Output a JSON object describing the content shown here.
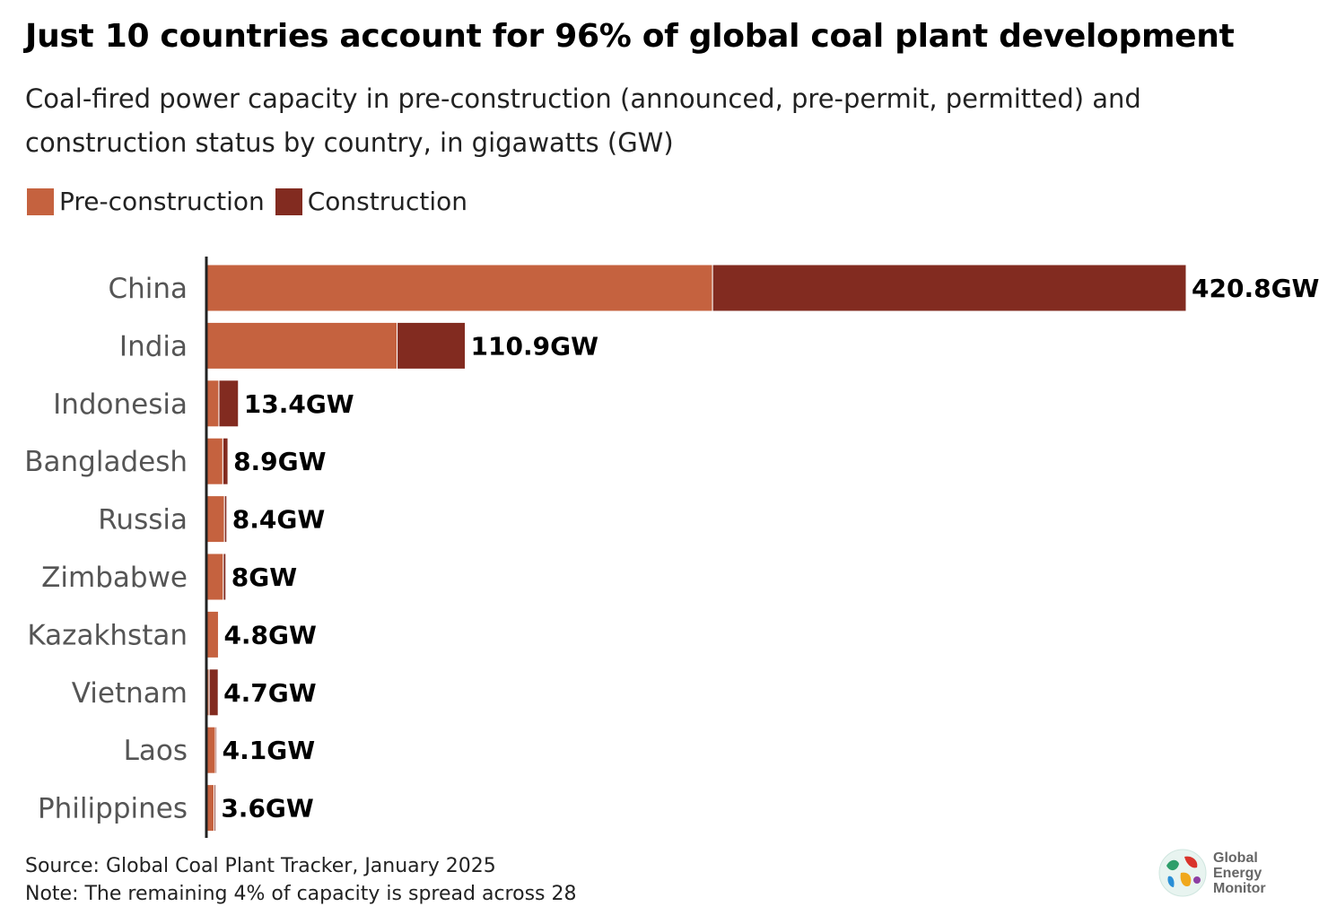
{
  "header": {
    "title": "Just 10 countries account for 96% of global coal plant development",
    "subtitle": "Coal-fired power capacity in pre-construction (announced, pre-permit, permitted) and construction status by country, in gigawatts (GW)"
  },
  "legend": {
    "pre_label": "Pre-construction",
    "con_label": "Construction",
    "pre_color": "#c5623f",
    "con_color": "#822b20"
  },
  "chart_data": {
    "type": "bar",
    "orientation": "horizontal",
    "stacked": true,
    "unit": "GW",
    "categories": [
      "China",
      "India",
      "Indonesia",
      "Bangladesh",
      "Russia",
      "Zimbabwe",
      "Kazakhstan",
      "Vietnam",
      "Laos",
      "Philippines"
    ],
    "series": [
      {
        "name": "Pre-construction",
        "color": "#c5623f",
        "values": [
          217.2,
          81.6,
          5.0,
          6.7,
          7.4,
          6.9,
          4.8,
          0.8,
          3.5,
          2.9
        ]
      },
      {
        "name": "Construction",
        "color": "#822b20",
        "values": [
          203.6,
          29.3,
          8.4,
          2.2,
          1.0,
          1.1,
          0.0,
          3.9,
          0.6,
          0.7
        ]
      }
    ],
    "totals": [
      "420.8GW",
      "110.9GW",
      "13.4GW",
      "8.9GW",
      "8.4GW",
      "8GW",
      "4.8GW",
      "4.7GW",
      "4.1GW",
      "3.6GW"
    ],
    "xlim": [
      0,
      420.8
    ],
    "grid": false
  },
  "footer": {
    "source": "Source: Global Coal Plant Tracker, January 2025",
    "note": "Note: The remaining 4% of capacity is spread across 28"
  },
  "logo": {
    "line1": "Global",
    "line2": "Energy",
    "line3": "Monitor"
  }
}
